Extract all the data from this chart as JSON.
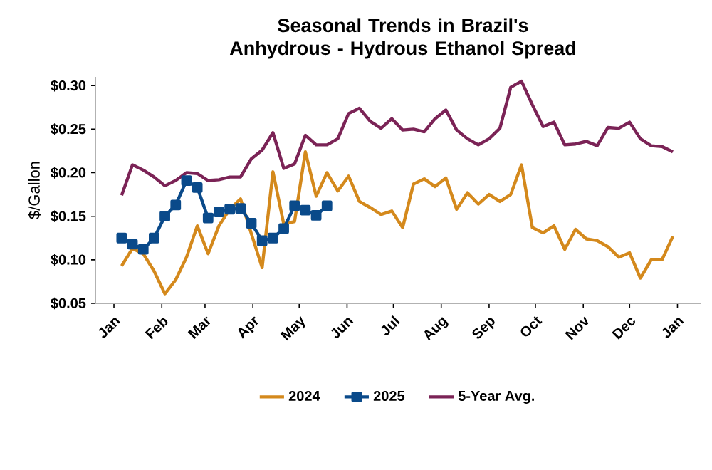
{
  "chart_data": {
    "type": "line",
    "title": "Seasonal Trends in Brazil's Anhydrous - Hydrous Ethanol Spread",
    "ylabel": "$/Gallon",
    "x": [
      "2023-01-06",
      "2023-01-13",
      "2023-01-20",
      "2023-01-27",
      "2023-02-03",
      "2023-02-10",
      "2023-02-17",
      "2023-02-24",
      "2023-03-03",
      "2023-03-10",
      "2023-03-17",
      "2023-03-24",
      "2023-03-31",
      "2023-04-07",
      "2023-04-14",
      "2023-04-21",
      "2023-04-28",
      "2023-05-05",
      "2023-05-12",
      "2023-05-19",
      "2023-05-26",
      "2023-06-02",
      "2023-06-09",
      "2023-06-16",
      "2023-06-23",
      "2023-06-30",
      "2023-07-07",
      "2023-07-14",
      "2023-07-21",
      "2023-07-28",
      "2023-08-04",
      "2023-08-11",
      "2023-08-18",
      "2023-08-25",
      "2023-09-01",
      "2023-09-08",
      "2023-09-15",
      "2023-09-22",
      "2023-09-29",
      "2023-10-06",
      "2023-10-13",
      "2023-10-20",
      "2023-10-27",
      "2023-11-03",
      "2023-11-10",
      "2023-11-17",
      "2023-11-24",
      "2023-12-01",
      "2023-12-08",
      "2023-12-15",
      "2023-12-22",
      "2023-12-29"
    ],
    "series": [
      {
        "name": "2024",
        "color": "#d4891c",
        "marker": "none",
        "values": [
          0.093,
          0.113,
          0.107,
          0.087,
          0.061,
          0.077,
          0.103,
          0.139,
          0.107,
          0.139,
          0.158,
          0.17,
          0.13,
          0.091,
          0.201,
          0.141,
          0.144,
          0.224,
          0.173,
          0.2,
          0.179,
          0.196,
          0.167,
          0.16,
          0.152,
          0.156,
          0.137,
          0.187,
          0.193,
          0.184,
          0.194,
          0.158,
          0.177,
          0.164,
          0.175,
          0.167,
          0.175,
          0.209,
          0.137,
          0.131,
          0.139,
          0.112,
          0.135,
          0.124,
          0.122,
          0.115,
          0.103,
          0.108,
          0.079,
          0.1,
          0.1,
          0.127
        ]
      },
      {
        "name": "2025",
        "color": "#0a4a8a",
        "marker": "square",
        "values": [
          0.125,
          0.118,
          0.112,
          0.125,
          0.15,
          0.163,
          0.191,
          0.183,
          0.148,
          0.155,
          0.158,
          0.159,
          0.142,
          0.122,
          0.125,
          0.136,
          0.162,
          0.157,
          0.151,
          0.162,
          null,
          null,
          null,
          null,
          null,
          null,
          null,
          null,
          null,
          null,
          null,
          null,
          null,
          null,
          null,
          null,
          null,
          null,
          null,
          null,
          null,
          null,
          null,
          null,
          null,
          null,
          null,
          null,
          null,
          null,
          null,
          null
        ]
      },
      {
        "name": "5-Year Avg.",
        "color": "#7b2356",
        "marker": "none",
        "values": [
          0.174,
          0.209,
          0.203,
          0.195,
          0.185,
          0.191,
          0.2,
          0.199,
          0.191,
          0.192,
          0.195,
          0.195,
          0.216,
          0.226,
          0.246,
          0.205,
          0.21,
          0.243,
          0.232,
          0.232,
          0.239,
          0.268,
          0.274,
          0.259,
          0.251,
          0.262,
          0.249,
          0.25,
          0.247,
          0.262,
          0.272,
          0.249,
          0.239,
          0.232,
          0.239,
          0.251,
          0.298,
          0.305,
          0.278,
          0.253,
          0.258,
          0.232,
          0.233,
          0.236,
          0.231,
          0.252,
          0.251,
          0.258,
          0.239,
          0.231,
          0.23,
          0.224
        ]
      }
    ],
    "xlim": [
      "2022-12-20",
      "2024-01-16"
    ],
    "xticks": [
      {
        "value": "2023-01-01",
        "label": "Jan"
      },
      {
        "value": "2023-02-01",
        "label": "Feb"
      },
      {
        "value": "2023-03-01",
        "label": "Mar"
      },
      {
        "value": "2023-04-01",
        "label": "Apr"
      },
      {
        "value": "2023-05-01",
        "label": "May"
      },
      {
        "value": "2023-06-01",
        "label": "Jun"
      },
      {
        "value": "2023-07-01",
        "label": "Jul"
      },
      {
        "value": "2023-08-01",
        "label": "Aug"
      },
      {
        "value": "2023-09-01",
        "label": "Sep"
      },
      {
        "value": "2023-10-01",
        "label": "Oct"
      },
      {
        "value": "2023-11-01",
        "label": "Nov"
      },
      {
        "value": "2023-12-01",
        "label": "Dec"
      },
      {
        "value": "2024-01-01",
        "label": "Jan"
      }
    ],
    "ylim": [
      0.05,
      0.31
    ],
    "yticks": [
      {
        "value": 0.05,
        "label": "$0.05"
      },
      {
        "value": 0.1,
        "label": "$0.10"
      },
      {
        "value": 0.15,
        "label": "$0.15"
      },
      {
        "value": 0.2,
        "label": "$0.20"
      },
      {
        "value": 0.25,
        "label": "$0.25"
      },
      {
        "value": 0.3,
        "label": "$0.30"
      }
    ],
    "grid": false,
    "legend": "bottom",
    "line_style": "solid"
  }
}
